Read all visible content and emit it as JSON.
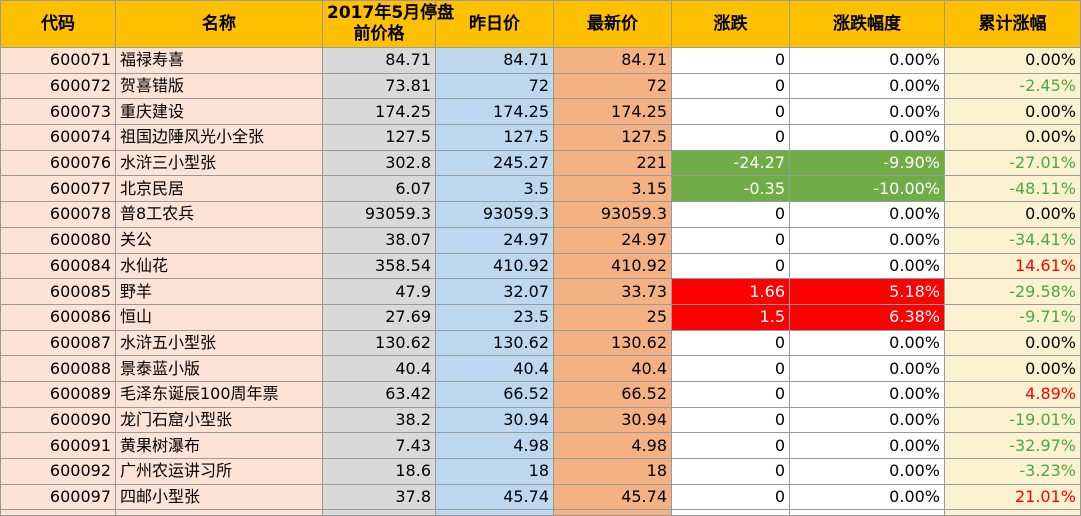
{
  "colors": {
    "header_bg": "#ffc000",
    "code_name_bg": "#fbe3d6",
    "prev_price_bg": "#d9d9d9",
    "yesterday_bg": "#bdd7ee",
    "latest_bg": "#f4b183",
    "cumulative_bg": "#fdf2d0",
    "up_fill": "#ff0000",
    "down_fill": "#70ad47",
    "up_text": "#ff0000",
    "down_text": "#4aa84a"
  },
  "headers": {
    "code": "代码",
    "name": "名称",
    "prev_price_line1": "2017年5月停盘",
    "prev_price_line2": "前价格",
    "yesterday": "昨日价",
    "latest": "最新价",
    "change": "涨跌",
    "change_pct": "涨跌幅度",
    "cumulative": "累计涨幅"
  },
  "rows": [
    {
      "code": "600071",
      "name": "福禄寿喜",
      "prev": "84.71",
      "yest": "84.71",
      "last": "84.71",
      "chg": "0",
      "pct": "0.00%",
      "cum": "0.00%",
      "cum_dir": "flat",
      "chg_fill": "none"
    },
    {
      "code": "600072",
      "name": "贺喜错版",
      "prev": "73.81",
      "yest": "72",
      "last": "72",
      "chg": "0",
      "pct": "0.00%",
      "cum": "-2.45%",
      "cum_dir": "down",
      "chg_fill": "none"
    },
    {
      "code": "600073",
      "name": "重庆建设",
      "prev": "174.25",
      "yest": "174.25",
      "last": "174.25",
      "chg": "0",
      "pct": "0.00%",
      "cum": "0.00%",
      "cum_dir": "flat",
      "chg_fill": "none"
    },
    {
      "code": "600074",
      "name": "祖国边陲风光小全张",
      "prev": "127.5",
      "yest": "127.5",
      "last": "127.5",
      "chg": "0",
      "pct": "0.00%",
      "cum": "0.00%",
      "cum_dir": "flat",
      "chg_fill": "none"
    },
    {
      "code": "600076",
      "name": "水浒三小型张",
      "prev": "302.8",
      "yest": "245.27",
      "last": "221",
      "chg": "-24.27",
      "pct": "-9.90%",
      "cum": "-27.01%",
      "cum_dir": "down",
      "chg_fill": "down"
    },
    {
      "code": "600077",
      "name": "北京民居",
      "prev": "6.07",
      "yest": "3.5",
      "last": "3.15",
      "chg": "-0.35",
      "pct": "-10.00%",
      "cum": "-48.11%",
      "cum_dir": "down",
      "chg_fill": "down"
    },
    {
      "code": "600078",
      "name": "普8工农兵",
      "prev": "93059.3",
      "yest": "93059.3",
      "last": "93059.3",
      "chg": "0",
      "pct": "0.00%",
      "cum": "0.00%",
      "cum_dir": "flat",
      "chg_fill": "none"
    },
    {
      "code": "600080",
      "name": "关公",
      "prev": "38.07",
      "yest": "24.97",
      "last": "24.97",
      "chg": "0",
      "pct": "0.00%",
      "cum": "-34.41%",
      "cum_dir": "down",
      "chg_fill": "none"
    },
    {
      "code": "600084",
      "name": "水仙花",
      "prev": "358.54",
      "yest": "410.92",
      "last": "410.92",
      "chg": "0",
      "pct": "0.00%",
      "cum": "14.61%",
      "cum_dir": "up",
      "chg_fill": "none"
    },
    {
      "code": "600085",
      "name": "野羊",
      "prev": "47.9",
      "yest": "32.07",
      "last": "33.73",
      "chg": "1.66",
      "pct": "5.18%",
      "cum": "-29.58%",
      "cum_dir": "down",
      "chg_fill": "up"
    },
    {
      "code": "600086",
      "name": "恒山",
      "prev": "27.69",
      "yest": "23.5",
      "last": "25",
      "chg": "1.5",
      "pct": "6.38%",
      "cum": "-9.71%",
      "cum_dir": "down",
      "chg_fill": "up"
    },
    {
      "code": "600087",
      "name": "水浒五小型张",
      "prev": "130.62",
      "yest": "130.62",
      "last": "130.62",
      "chg": "0",
      "pct": "0.00%",
      "cum": "0.00%",
      "cum_dir": "flat",
      "chg_fill": "none"
    },
    {
      "code": "600088",
      "name": "景泰蓝小版",
      "prev": "40.4",
      "yest": "40.4",
      "last": "40.4",
      "chg": "0",
      "pct": "0.00%",
      "cum": "0.00%",
      "cum_dir": "flat",
      "chg_fill": "none"
    },
    {
      "code": "600089",
      "name": "毛泽东诞辰100周年票",
      "prev": "63.42",
      "yest": "66.52",
      "last": "66.52",
      "chg": "0",
      "pct": "0.00%",
      "cum": "4.89%",
      "cum_dir": "up",
      "chg_fill": "none"
    },
    {
      "code": "600090",
      "name": "龙门石窟小型张",
      "prev": "38.2",
      "yest": "30.94",
      "last": "30.94",
      "chg": "0",
      "pct": "0.00%",
      "cum": "-19.01%",
      "cum_dir": "down",
      "chg_fill": "none"
    },
    {
      "code": "600091",
      "name": "黄果树瀑布",
      "prev": "7.43",
      "yest": "4.98",
      "last": "4.98",
      "chg": "0",
      "pct": "0.00%",
      "cum": "-32.97%",
      "cum_dir": "down",
      "chg_fill": "none"
    },
    {
      "code": "600092",
      "name": "广州农运讲习所",
      "prev": "18.6",
      "yest": "18",
      "last": "18",
      "chg": "0",
      "pct": "0.00%",
      "cum": "-3.23%",
      "cum_dir": "down",
      "chg_fill": "none"
    },
    {
      "code": "600097",
      "name": "四邮小型张",
      "prev": "37.8",
      "yest": "45.74",
      "last": "45.74",
      "chg": "0",
      "pct": "0.00%",
      "cum": "21.01%",
      "cum_dir": "up",
      "chg_fill": "none"
    }
  ]
}
